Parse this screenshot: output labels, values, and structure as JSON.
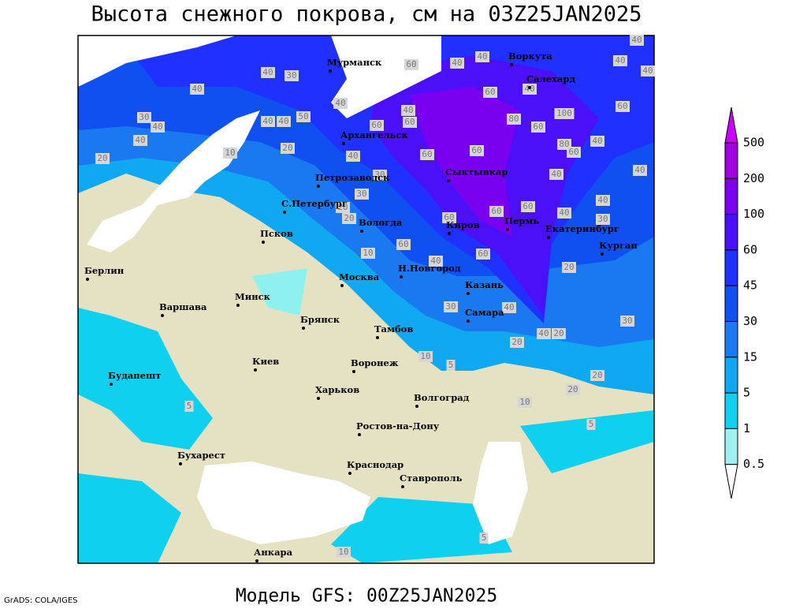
{
  "title": "Высота снежного покрова, см на 03Z25JAN2025",
  "footer": "Модель GFS: 00Z25JAN2025",
  "credit": "GrADS: COLA/IGES",
  "legend": {
    "levels": [
      500,
      200,
      100,
      60,
      45,
      30,
      15,
      5,
      1,
      0.5
    ]
  },
  "cities": [
    "Мурманск",
    "Воркута",
    "Салехард",
    "Архангельск",
    "Сыктывкар",
    "Петрозаводск",
    "С.Петербург",
    "Вологда",
    "Киров",
    "Пермь",
    "Екатеринбург",
    "Курган",
    "Псков",
    "Берлин",
    "Москва",
    "Н.Новгород",
    "Казань",
    "Минск",
    "Варшава",
    "Брянск",
    "Самара",
    "Тамбов",
    "Киев",
    "Воронеж",
    "Будапешт",
    "Харьков",
    "Волгоград",
    "Ростов-на-Дону",
    "Бухарест",
    "Краснодар",
    "Ставрополь",
    "Анкара"
  ],
  "contour_labels": [
    40,
    40,
    30,
    40,
    40,
    30,
    40,
    40,
    20,
    10,
    20,
    40,
    40,
    50,
    40,
    60,
    60,
    60,
    40,
    100,
    60,
    80,
    60,
    80,
    60,
    40,
    60,
    60,
    40,
    40,
    40,
    30,
    30,
    20,
    20,
    60,
    40,
    40,
    30,
    60,
    60,
    60,
    60,
    10,
    40,
    20,
    30,
    40,
    30,
    40,
    20,
    20,
    10,
    5,
    20,
    20,
    10,
    5,
    5,
    10,
    5,
    40,
    60,
    40,
    40,
    40
  ]
}
